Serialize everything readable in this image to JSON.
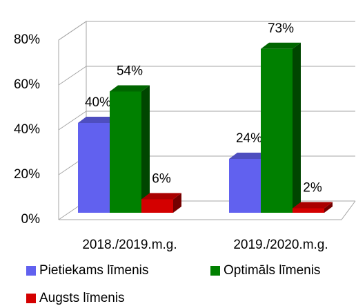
{
  "chart_data": {
    "type": "bar3d",
    "categories": [
      "2018./2019.m.g.",
      "2019./2020.m.g."
    ],
    "series": [
      {
        "name": "Pietiekams līmenis",
        "color": "#6161ef",
        "values": [
          40,
          24
        ],
        "value_labels": [
          "40%",
          "24%"
        ]
      },
      {
        "name": "Optimāls līmenis",
        "color": "#008000",
        "values": [
          54,
          73
        ],
        "value_labels": [
          "54%",
          "73%"
        ]
      },
      {
        "name": "Augsts līmenis",
        "color": "#d40000",
        "values": [
          6,
          2
        ],
        "value_labels": [
          "6%",
          "2%"
        ]
      }
    ],
    "ylim": [
      0,
      80
    ],
    "yticks": [
      {
        "value": 0,
        "label": "0%"
      },
      {
        "value": 20,
        "label": "20%"
      },
      {
        "value": 40,
        "label": "40%"
      },
      {
        "value": 60,
        "label": "60%"
      },
      {
        "value": 80,
        "label": "80%"
      }
    ],
    "grid": true,
    "legend": "bottom"
  }
}
